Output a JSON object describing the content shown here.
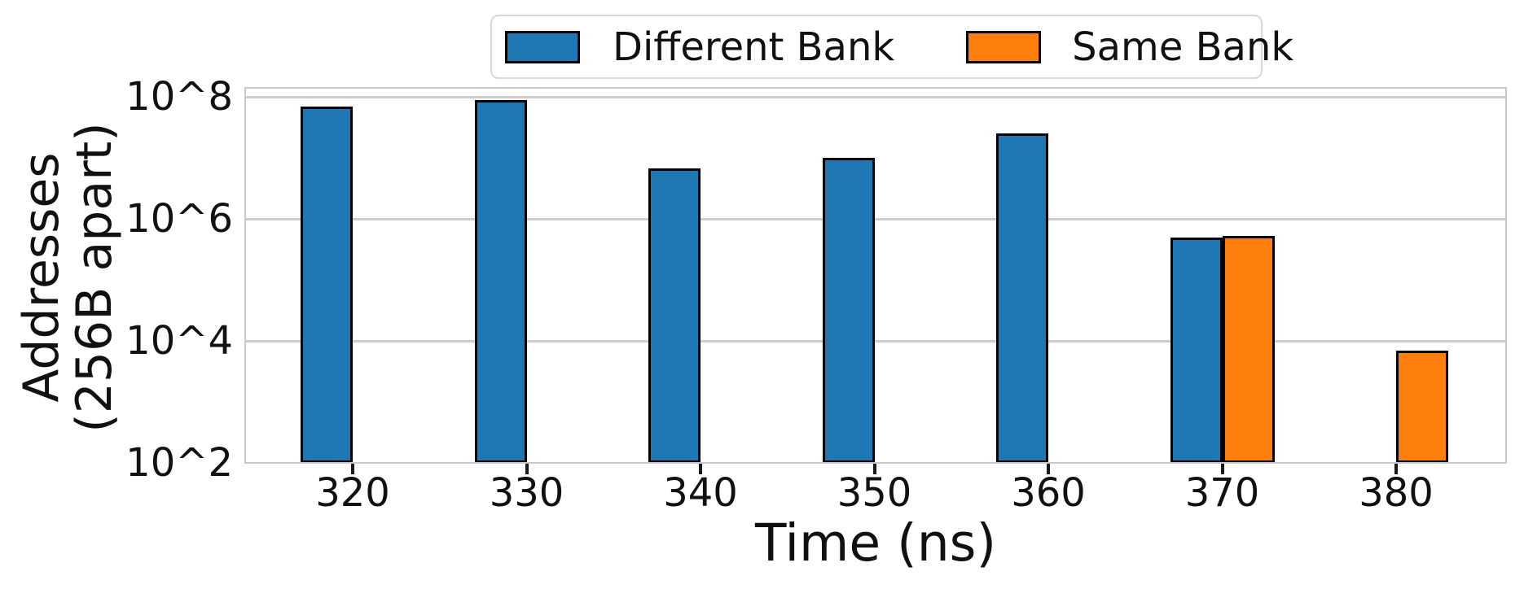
{
  "chart_data": {
    "type": "bar",
    "title": "",
    "xlabel": "Time (ns)",
    "ylabel_lines": [
      "Addresses",
      "(256B apart)"
    ],
    "categories": [
      "320",
      "330",
      "340",
      "350",
      "360",
      "370",
      "380"
    ],
    "series": [
      {
        "name": "Different Bank",
        "color": "#1f77b4",
        "values": [
          70000000,
          88000000,
          6700000,
          10000000,
          25000000,
          500000,
          null
        ]
      },
      {
        "name": "Same Bank",
        "color": "#ff7f0e",
        "values": [
          null,
          null,
          null,
          null,
          null,
          520000,
          7000
        ]
      }
    ],
    "y_scale": "log",
    "y_ticks": [
      {
        "label": "10^2",
        "exponent": 2
      },
      {
        "label": "10^4",
        "exponent": 4
      },
      {
        "label": "10^6",
        "exponent": 6
      },
      {
        "label": "10^8",
        "exponent": 8
      }
    ],
    "ylim_log10": [
      2,
      8.17
    ],
    "grid": "horizontal",
    "grid_color": "#cdcdcd",
    "bar_edge_color": "#000000",
    "legend_position": "top-center"
  },
  "legend": {
    "items": [
      {
        "label": "Different Bank",
        "color": "#1f77b4"
      },
      {
        "label": "Same Bank",
        "color": "#ff7f0e"
      }
    ]
  }
}
